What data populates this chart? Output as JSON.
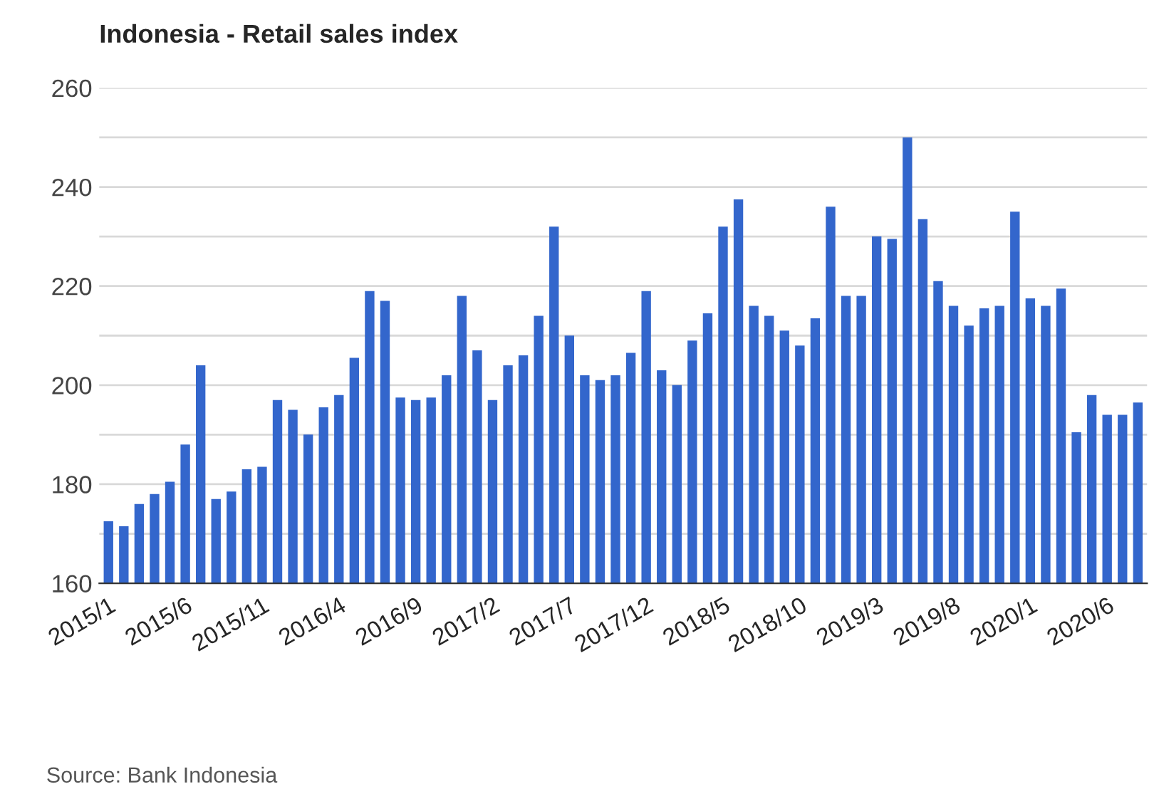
{
  "chart_data": {
    "type": "bar",
    "title": "Indonesia - Retail sales index",
    "categories": [
      "2015/1",
      null,
      null,
      null,
      null,
      "2015/6",
      null,
      null,
      null,
      null,
      "2015/11",
      null,
      null,
      null,
      null,
      "2016/4",
      null,
      null,
      null,
      null,
      "2016/9",
      null,
      null,
      null,
      null,
      "2017/2",
      null,
      null,
      null,
      null,
      "2017/7",
      null,
      null,
      null,
      null,
      "2017/12",
      null,
      null,
      null,
      null,
      "2018/5",
      null,
      null,
      null,
      null,
      "2018/10",
      null,
      null,
      null,
      null,
      "2019/3",
      null,
      null,
      null,
      null,
      "2019/8",
      null,
      null,
      null,
      null,
      "2020/1",
      null,
      null,
      null,
      null,
      "2020/6",
      null,
      null
    ],
    "values": [
      172.5,
      171.5,
      176,
      178,
      180.5,
      188,
      204,
      177,
      178.5,
      183,
      183.5,
      197,
      195,
      190,
      195.5,
      198,
      205.5,
      219,
      217,
      197.5,
      197,
      197.5,
      202,
      218,
      207,
      197,
      204,
      206,
      214,
      232,
      210,
      202,
      201,
      202,
      206.5,
      219,
      203,
      200,
      209,
      214.5,
      232,
      237.5,
      216,
      214,
      211,
      208,
      213.5,
      236,
      218,
      218,
      230,
      229.5,
      250,
      233.5,
      221,
      216,
      212,
      215.5,
      216,
      235,
      217.5,
      216,
      219.5,
      190.5,
      198,
      194,
      194,
      196.5
    ],
    "color": "#3366cc",
    "ylim": [
      160,
      260
    ],
    "yticks": [
      160,
      {
        "value": 170,
        "label": null
      },
      180,
      {
        "value": 190,
        "label": null
      },
      200,
      {
        "value": 210,
        "label": null
      },
      220,
      {
        "value": 230,
        "label": null
      },
      240,
      {
        "value": 250,
        "label": null
      },
      260
    ],
    "grid": "y",
    "annotations": [
      "Source: Bank Indonesia"
    ]
  }
}
